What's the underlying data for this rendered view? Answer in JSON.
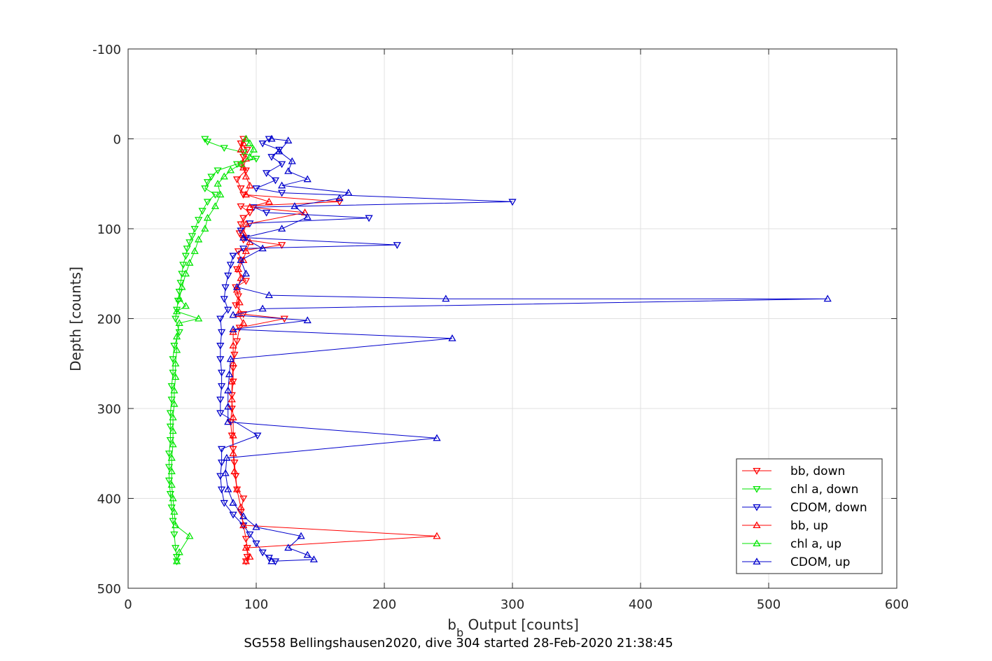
{
  "chart_data": {
    "type": "line",
    "title": "",
    "caption": "SG558 Bellingshausen2020, dive 304 started 28-Feb-2020 21:38:45",
    "xlabel_main": "b",
    "xlabel_sub": "b",
    "xlabel_rest": " Output [counts]",
    "ylabel": "Depth [counts]",
    "xlim": [
      0,
      600
    ],
    "ylim": [
      -100,
      500
    ],
    "y_reversed": true,
    "grid": true,
    "x_ticks": [
      "0",
      "100",
      "200",
      "300",
      "400",
      "500",
      "600"
    ],
    "y_ticks": [
      "-100",
      "0",
      "100",
      "200",
      "300",
      "400",
      "500"
    ],
    "legend_position": "lower-right",
    "colors": {
      "red": "#ff0000",
      "green": "#00e600",
      "blue": "#0000cc",
      "grid": "#e0e0e0",
      "axis": "#262626"
    },
    "series": [
      {
        "name": "bb, down",
        "color": "#ff0000",
        "marker": "triangle-down",
        "points": [
          [
            90,
            0
          ],
          [
            88,
            5
          ],
          [
            93,
            12
          ],
          [
            90,
            20
          ],
          [
            88,
            28
          ],
          [
            92,
            35
          ],
          [
            85,
            45
          ],
          [
            88,
            55
          ],
          [
            90,
            62
          ],
          [
            165,
            70
          ],
          [
            88,
            75
          ],
          [
            95,
            82
          ],
          [
            90,
            88
          ],
          [
            88,
            95
          ],
          [
            87,
            105
          ],
          [
            90,
            112
          ],
          [
            120,
            118
          ],
          [
            86,
            125
          ],
          [
            88,
            135
          ],
          [
            85,
            145
          ],
          [
            92,
            158
          ],
          [
            84,
            165
          ],
          [
            86,
            175
          ],
          [
            84,
            185
          ],
          [
            90,
            195
          ],
          [
            122,
            200
          ],
          [
            87,
            210
          ],
          [
            85,
            225
          ],
          [
            83,
            240
          ],
          [
            82,
            255
          ],
          [
            82,
            270
          ],
          [
            81,
            285
          ],
          [
            81,
            300
          ],
          [
            80,
            315
          ],
          [
            81,
            330
          ],
          [
            82,
            345
          ],
          [
            83,
            360
          ],
          [
            84,
            375
          ],
          [
            85,
            390
          ],
          [
            90,
            400
          ],
          [
            88,
            415
          ],
          [
            90,
            430
          ],
          [
            92,
            445
          ],
          [
            93,
            455
          ],
          [
            93,
            465
          ],
          [
            92,
            470
          ]
        ]
      },
      {
        "name": "chl a, down",
        "color": "#00e600",
        "marker": "triangle-down",
        "points": [
          [
            60,
            0
          ],
          [
            62,
            3
          ],
          [
            75,
            10
          ],
          [
            90,
            15
          ],
          [
            100,
            22
          ],
          [
            85,
            28
          ],
          [
            70,
            35
          ],
          [
            65,
            42
          ],
          [
            62,
            48
          ],
          [
            60,
            55
          ],
          [
            68,
            62
          ],
          [
            62,
            70
          ],
          [
            58,
            80
          ],
          [
            55,
            90
          ],
          [
            52,
            100
          ],
          [
            50,
            108
          ],
          [
            48,
            115
          ],
          [
            46,
            122
          ],
          [
            45,
            130
          ],
          [
            43,
            140
          ],
          [
            42,
            150
          ],
          [
            41,
            160
          ],
          [
            40,
            170
          ],
          [
            39,
            180
          ],
          [
            38,
            190
          ],
          [
            37,
            200
          ],
          [
            40,
            215
          ],
          [
            36,
            230
          ],
          [
            35,
            245
          ],
          [
            35,
            260
          ],
          [
            34,
            275
          ],
          [
            34,
            290
          ],
          [
            33,
            305
          ],
          [
            33,
            320
          ],
          [
            33,
            335
          ],
          [
            32,
            350
          ],
          [
            32,
            365
          ],
          [
            32,
            380
          ],
          [
            33,
            395
          ],
          [
            34,
            410
          ],
          [
            35,
            425
          ],
          [
            36,
            440
          ],
          [
            37,
            455
          ],
          [
            38,
            465
          ],
          [
            38,
            470
          ]
        ]
      },
      {
        "name": "CDOM, down",
        "color": "#0000cc",
        "marker": "triangle-down",
        "points": [
          [
            110,
            0
          ],
          [
            105,
            5
          ],
          [
            118,
            12
          ],
          [
            112,
            20
          ],
          [
            120,
            28
          ],
          [
            108,
            38
          ],
          [
            115,
            46
          ],
          [
            100,
            55
          ],
          [
            120,
            60
          ],
          [
            300,
            70
          ],
          [
            98,
            76
          ],
          [
            108,
            82
          ],
          [
            188,
            88
          ],
          [
            95,
            94
          ],
          [
            88,
            102
          ],
          [
            92,
            110
          ],
          [
            210,
            118
          ],
          [
            90,
            122
          ],
          [
            82,
            130
          ],
          [
            80,
            140
          ],
          [
            78,
            152
          ],
          [
            76,
            165
          ],
          [
            75,
            178
          ],
          [
            78,
            190
          ],
          [
            72,
            200
          ],
          [
            73,
            215
          ],
          [
            72,
            230
          ],
          [
            72,
            245
          ],
          [
            73,
            260
          ],
          [
            73,
            275
          ],
          [
            72,
            290
          ],
          [
            72,
            305
          ],
          [
            101,
            330
          ],
          [
            73,
            345
          ],
          [
            73,
            360
          ],
          [
            72,
            375
          ],
          [
            73,
            390
          ],
          [
            75,
            405
          ],
          [
            82,
            418
          ],
          [
            90,
            430
          ],
          [
            95,
            440
          ],
          [
            100,
            450
          ],
          [
            105,
            460
          ],
          [
            110,
            466
          ],
          [
            115,
            470
          ]
        ]
      },
      {
        "name": "bb, up",
        "color": "#ff0000",
        "marker": "triangle-up",
        "points": [
          [
            92,
            470
          ],
          [
            95,
            465
          ],
          [
            92,
            455
          ],
          [
            241,
            442
          ],
          [
            90,
            430
          ],
          [
            88,
            410
          ],
          [
            85,
            390
          ],
          [
            83,
            370
          ],
          [
            82,
            350
          ],
          [
            82,
            330
          ],
          [
            82,
            310
          ],
          [
            81,
            290
          ],
          [
            81,
            270
          ],
          [
            82,
            250
          ],
          [
            82,
            230
          ],
          [
            82,
            215
          ],
          [
            90,
            205
          ],
          [
            86,
            195
          ],
          [
            87,
            182
          ],
          [
            85,
            168
          ],
          [
            88,
            155
          ],
          [
            86,
            145
          ],
          [
            90,
            135
          ],
          [
            92,
            125
          ],
          [
            95,
            115
          ],
          [
            90,
            105
          ],
          [
            92,
            95
          ],
          [
            138,
            82
          ],
          [
            95,
            76
          ],
          [
            110,
            70
          ],
          [
            92,
            62
          ],
          [
            95,
            52
          ],
          [
            92,
            42
          ],
          [
            90,
            32
          ],
          [
            92,
            22
          ],
          [
            88,
            12
          ],
          [
            90,
            5
          ],
          [
            92,
            0
          ]
        ]
      },
      {
        "name": "chl a, up",
        "color": "#00e600",
        "marker": "triangle-up",
        "points": [
          [
            38,
            470
          ],
          [
            40,
            460
          ],
          [
            48,
            442
          ],
          [
            37,
            430
          ],
          [
            36,
            415
          ],
          [
            35,
            400
          ],
          [
            34,
            385
          ],
          [
            34,
            370
          ],
          [
            34,
            355
          ],
          [
            35,
            340
          ],
          [
            35,
            325
          ],
          [
            35,
            310
          ],
          [
            36,
            295
          ],
          [
            36,
            280
          ],
          [
            37,
            265
          ],
          [
            37,
            250
          ],
          [
            38,
            235
          ],
          [
            38,
            220
          ],
          [
            40,
            205
          ],
          [
            55,
            200
          ],
          [
            38,
            192
          ],
          [
            45,
            186
          ],
          [
            40,
            178
          ],
          [
            42,
            165
          ],
          [
            45,
            150
          ],
          [
            48,
            138
          ],
          [
            52,
            125
          ],
          [
            55,
            112
          ],
          [
            60,
            100
          ],
          [
            62,
            88
          ],
          [
            68,
            75
          ],
          [
            72,
            62
          ],
          [
            70,
            50
          ],
          [
            75,
            42
          ],
          [
            80,
            35
          ],
          [
            88,
            28
          ],
          [
            95,
            20
          ],
          [
            98,
            12
          ],
          [
            95,
            5
          ],
          [
            92,
            0
          ]
        ]
      },
      {
        "name": "CDOM, up",
        "color": "#0000cc",
        "marker": "triangle-up",
        "points": [
          [
            112,
            470
          ],
          [
            145,
            468
          ],
          [
            140,
            463
          ],
          [
            125,
            455
          ],
          [
            135,
            442
          ],
          [
            100,
            432
          ],
          [
            90,
            420
          ],
          [
            82,
            405
          ],
          [
            78,
            390
          ],
          [
            76,
            372
          ],
          [
            77,
            355
          ],
          [
            241,
            333
          ],
          [
            78,
            315
          ],
          [
            78,
            298
          ],
          [
            78,
            280
          ],
          [
            79,
            262
          ],
          [
            80,
            245
          ],
          [
            253,
            222
          ],
          [
            82,
            212
          ],
          [
            140,
            202
          ],
          [
            82,
            196
          ],
          [
            105,
            189
          ],
          [
            546,
            178
          ],
          [
            248,
            178
          ],
          [
            110,
            174
          ],
          [
            85,
            165
          ],
          [
            92,
            150
          ],
          [
            88,
            135
          ],
          [
            105,
            122
          ],
          [
            90,
            110
          ],
          [
            120,
            100
          ],
          [
            140,
            87
          ],
          [
            130,
            75
          ],
          [
            165,
            66
          ],
          [
            172,
            60
          ],
          [
            120,
            52
          ],
          [
            140,
            45
          ],
          [
            125,
            36
          ],
          [
            128,
            25
          ],
          [
            118,
            14
          ],
          [
            125,
            2
          ],
          [
            112,
            0
          ]
        ]
      }
    ]
  }
}
